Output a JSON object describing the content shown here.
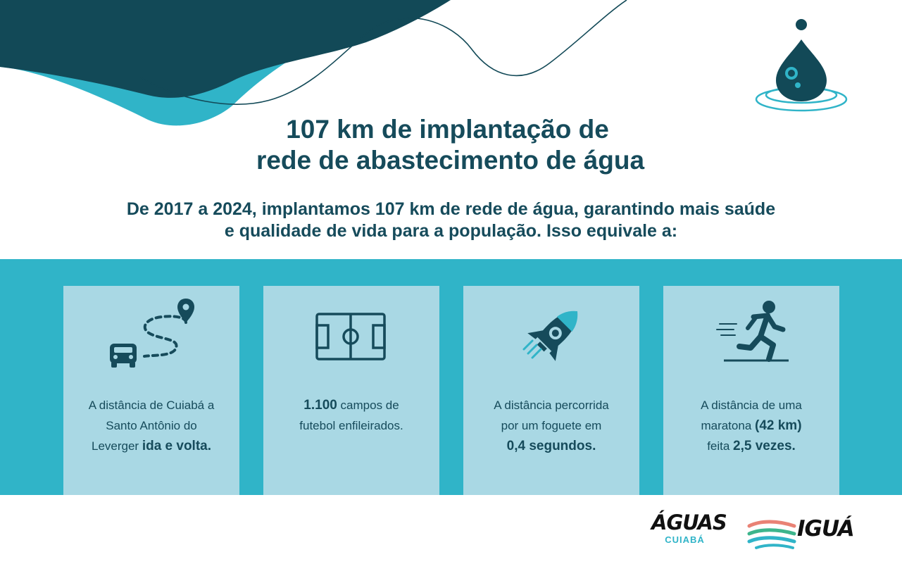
{
  "header": {
    "title_line1": "107 km de implantação de",
    "title_line2": "rede de abastecimento de água"
  },
  "intro": {
    "line1": "De 2017 a 2024, implantamos 107 km de rede de água, garantindo mais saúde",
    "line2": "e qualidade de vida para a população. Isso equivale a:"
  },
  "cards": [
    {
      "icon": "car-route-icon",
      "text_lines": [
        "A distância de Cuiabá a",
        "Santo Antônio do"
      ],
      "text_last_plain": "Leverger ",
      "text_last_bold": "ida e volta."
    },
    {
      "icon": "soccer-field-icon",
      "bold_value": "1.100",
      "text_after": " campos de",
      "text_line2": "futebol enfileirados."
    },
    {
      "icon": "rocket-icon",
      "text_lines": [
        "A distância percorrida",
        "por um foguete em"
      ],
      "text_bold": "0,4 segundos."
    },
    {
      "icon": "runner-icon",
      "line1": "A distância de uma",
      "line2_plain": "maratona ",
      "line2_bold": "(42 km)",
      "line3_plain": "feita ",
      "line3_bold": "2,5 vezes."
    }
  ],
  "logos": {
    "aguas_main": "ÁGUAS",
    "aguas_sub": "CUIABÁ",
    "igua": "IGUÁ"
  },
  "colors": {
    "dark_teal": "#164b5b",
    "accent_cyan": "#30b4c8",
    "card_bg": "#a9d8e4",
    "wave_dark": "#124957"
  }
}
